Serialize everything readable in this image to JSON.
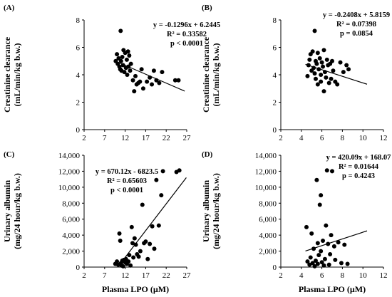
{
  "chart_data": [
    {
      "panel": "(A)",
      "type": "scatter",
      "ylabel": "Creatinine clearance",
      "ylabel_units": "(mL/min/kg b.w.)",
      "xlabel": "",
      "xlim": [
        2,
        27
      ],
      "ylim": [
        0,
        8
      ],
      "xticks": [
        "2",
        "7",
        "12",
        "17",
        "22",
        "27"
      ],
      "yticks": [
        "0",
        "2",
        "4",
        "6",
        "8"
      ],
      "annotations": [
        "y = -0.1296x + 6.2445",
        "R² = 0.33582",
        "p < 0.0001"
      ],
      "trendline": {
        "slope": -0.1296,
        "intercept": 6.2445,
        "x_range": [
          9.5,
          26.5
        ]
      },
      "points": [
        [
          9.7,
          5.0
        ],
        [
          10.0,
          5.5
        ],
        [
          10.2,
          4.8
        ],
        [
          10.4,
          5.2
        ],
        [
          10.6,
          4.6
        ],
        [
          10.8,
          4.4
        ],
        [
          10.9,
          7.2
        ],
        [
          11.0,
          5.0
        ],
        [
          11.1,
          4.3
        ],
        [
          11.3,
          5.3
        ],
        [
          11.5,
          4.7
        ],
        [
          11.6,
          5.8
        ],
        [
          11.8,
          4.2
        ],
        [
          12.0,
          5.6
        ],
        [
          12.2,
          4.5
        ],
        [
          12.4,
          5.1
        ],
        [
          12.5,
          4.0
        ],
        [
          12.7,
          5.7
        ],
        [
          12.8,
          4.6
        ],
        [
          13.0,
          5.4
        ],
        [
          13.2,
          4.3
        ],
        [
          13.4,
          4.8
        ],
        [
          13.9,
          3.6
        ],
        [
          14.2,
          2.8
        ],
        [
          14.5,
          3.9
        ],
        [
          14.8,
          3.3
        ],
        [
          15.2,
          3.4
        ],
        [
          15.6,
          3.5
        ],
        [
          16.0,
          4.4
        ],
        [
          16.4,
          3.0
        ],
        [
          17.3,
          3.5
        ],
        [
          18.0,
          3.8
        ],
        [
          18.5,
          3.3
        ],
        [
          19.0,
          4.3
        ],
        [
          19.6,
          3.6
        ],
        [
          20.3,
          3.4
        ],
        [
          21.0,
          4.2
        ],
        [
          24.2,
          3.6
        ],
        [
          25.0,
          3.6
        ]
      ]
    },
    {
      "panel": "(B)",
      "type": "scatter",
      "ylabel": "Creatinine clearance",
      "ylabel_units": "(mL/min/kg b.w.)",
      "xlabel": "",
      "xlim": [
        2,
        12
      ],
      "ylim": [
        0,
        8
      ],
      "xticks": [
        "2",
        "4",
        "6",
        "8",
        "10",
        "12"
      ],
      "yticks": [
        "0",
        "2",
        "4",
        "6",
        "8"
      ],
      "annotations": [
        "y = -0.2408x + 5.8159",
        "R² = 0.07398",
        "p = 0.0854"
      ],
      "trendline": {
        "slope": -0.2408,
        "intercept": 5.8159,
        "x_range": [
          4.4,
          10.4
        ]
      },
      "points": [
        [
          4.6,
          3.9
        ],
        [
          4.7,
          4.7
        ],
        [
          4.8,
          5.1
        ],
        [
          4.9,
          5.5
        ],
        [
          5.0,
          4.3
        ],
        [
          5.1,
          5.7
        ],
        [
          5.2,
          4.5
        ],
        [
          5.3,
          7.2
        ],
        [
          5.3,
          4.1
        ],
        [
          5.4,
          5.0
        ],
        [
          5.4,
          3.7
        ],
        [
          5.5,
          4.8
        ],
        [
          5.6,
          5.6
        ],
        [
          5.6,
          3.3
        ],
        [
          5.7,
          4.4
        ],
        [
          5.8,
          5.2
        ],
        [
          5.9,
          4.0
        ],
        [
          5.9,
          3.5
        ],
        [
          6.0,
          4.9
        ],
        [
          6.1,
          4.6
        ],
        [
          6.2,
          5.8
        ],
        [
          6.2,
          2.8
        ],
        [
          6.3,
          4.2
        ],
        [
          6.4,
          3.8
        ],
        [
          6.5,
          5.1
        ],
        [
          6.6,
          4.7
        ],
        [
          6.7,
          3.4
        ],
        [
          6.8,
          4.8
        ],
        [
          6.9,
          3.7
        ],
        [
          7.0,
          5.0
        ],
        [
          7.1,
          4.3
        ],
        [
          7.3,
          3.5
        ],
        [
          7.5,
          3.3
        ],
        [
          7.8,
          4.9
        ],
        [
          8.1,
          4.2
        ],
        [
          8.4,
          4.7
        ],
        [
          8.6,
          4.4
        ]
      ]
    },
    {
      "panel": "(C)",
      "type": "scatter",
      "ylabel": "Urinary albumin",
      "ylabel_units": "(mg/24 hour/kg b.w.)",
      "xlabel": "Plasma LPO (µM)",
      "xlim": [
        2,
        27
      ],
      "ylim": [
        0,
        14000
      ],
      "xticks": [
        "2",
        "7",
        "12",
        "17",
        "22",
        "27"
      ],
      "yticks": [
        "0",
        "2,000",
        "4,000",
        "6,000",
        "8,000",
        "10,000",
        "12,000",
        "14,000"
      ],
      "annotations": [
        "y = 670.12x - 6823.5",
        "R² = 0.65603",
        "p < 0.0001"
      ],
      "trendline": {
        "slope": 670.12,
        "intercept": -6823.5,
        "x_range": [
          10.2,
          26.9
        ]
      },
      "points": [
        [
          9.6,
          400
        ],
        [
          10.0,
          700
        ],
        [
          10.3,
          300
        ],
        [
          10.6,
          4200
        ],
        [
          10.8,
          3300
        ],
        [
          11.0,
          500
        ],
        [
          11.1,
          200
        ],
        [
          11.3,
          800
        ],
        [
          11.5,
          100
        ],
        [
          11.7,
          900
        ],
        [
          12.0,
          600
        ],
        [
          12.2,
          1000
        ],
        [
          12.4,
          400
        ],
        [
          12.8,
          700
        ],
        [
          13.0,
          1500
        ],
        [
          13.3,
          200
        ],
        [
          13.6,
          5000
        ],
        [
          13.8,
          3000
        ],
        [
          14.0,
          1200
        ],
        [
          14.3,
          3600
        ],
        [
          14.6,
          2800
        ],
        [
          14.9,
          1600
        ],
        [
          15.3,
          1300
        ],
        [
          15.7,
          2000
        ],
        [
          16.2,
          7800
        ],
        [
          16.6,
          3000
        ],
        [
          17.0,
          3200
        ],
        [
          17.5,
          1000
        ],
        [
          18.0,
          2900
        ],
        [
          18.6,
          5100
        ],
        [
          19.1,
          2300
        ],
        [
          19.6,
          10900
        ],
        [
          20.2,
          5200
        ],
        [
          20.8,
          9000
        ],
        [
          21.2,
          12000
        ],
        [
          24.5,
          11900
        ],
        [
          25.2,
          12100
        ]
      ]
    },
    {
      "panel": "(D)",
      "type": "scatter",
      "ylabel": "Urinary albumin",
      "ylabel_units": "(mg/24 hour/kg b.w.)",
      "xlabel": "Plasma LPO (µM)",
      "xlim": [
        2,
        12
      ],
      "ylim": [
        0,
        14000
      ],
      "xticks": [
        "2",
        "4",
        "6",
        "8",
        "10",
        "12"
      ],
      "yticks": [
        "0",
        "2,000",
        "4,000",
        "6,000",
        "8,000",
        "10,000",
        "12,000",
        "14,000"
      ],
      "annotations": [
        "y = 420.09x + 168.07",
        "R² = 0.01644",
        "p = 0.4243"
      ],
      "trendline": {
        "slope": 420.09,
        "intercept": 168.07,
        "x_range": [
          4.4,
          10.4
        ]
      },
      "points": [
        [
          4.5,
          5000
        ],
        [
          4.6,
          700
        ],
        [
          4.8,
          300
        ],
        [
          4.9,
          1200
        ],
        [
          5.0,
          4200
        ],
        [
          5.1,
          500
        ],
        [
          5.2,
          2300
        ],
        [
          5.3,
          100
        ],
        [
          5.4,
          800
        ],
        [
          5.5,
          10900
        ],
        [
          5.6,
          3000
        ],
        [
          5.6,
          400
        ],
        [
          5.7,
          1500
        ],
        [
          5.8,
          7800
        ],
        [
          5.9,
          9000
        ],
        [
          5.9,
          2000
        ],
        [
          6.0,
          600
        ],
        [
          6.1,
          3300
        ],
        [
          6.2,
          200
        ],
        [
          6.3,
          1000
        ],
        [
          6.4,
          5200
        ],
        [
          6.5,
          12100
        ],
        [
          6.6,
          2900
        ],
        [
          6.7,
          300
        ],
        [
          6.8,
          1600
        ],
        [
          6.9,
          4000
        ],
        [
          7.0,
          12000
        ],
        [
          7.2,
          2600
        ],
        [
          7.3,
          900
        ],
        [
          7.6,
          3100
        ],
        [
          7.9,
          500
        ],
        [
          8.2,
          2800
        ],
        [
          8.5,
          400
        ]
      ]
    }
  ]
}
